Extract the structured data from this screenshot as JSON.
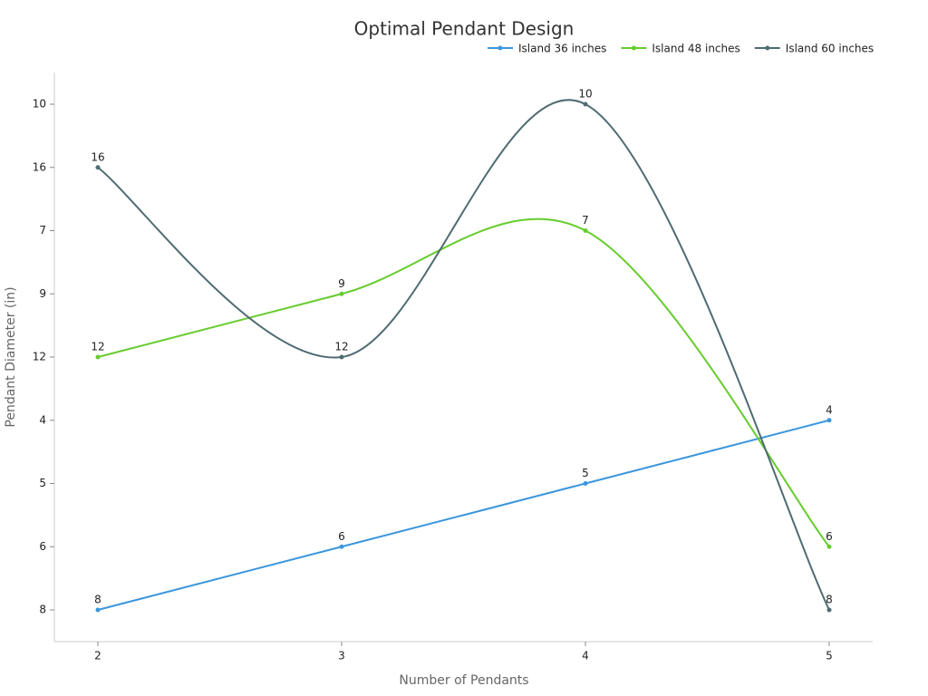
{
  "chart_data": {
    "type": "line",
    "title": "Optimal Pendant Design",
    "x_label": "Number of Pendants",
    "y_label": "Pendant Diameter (in)",
    "categories": [
      "2",
      "3",
      "4",
      "5"
    ],
    "y_categories": [
      8,
      6,
      5,
      4,
      12,
      9,
      7,
      16,
      10
    ],
    "smooth": true,
    "series": [
      {
        "name": "Island 36 inches",
        "color": "#3a96dd",
        "values": [
          8,
          6,
          5,
          4
        ]
      },
      {
        "name": "Island 48 inches",
        "color": "#66cc2e",
        "values": [
          12,
          9,
          7,
          6
        ]
      },
      {
        "name": "Island 60 inches",
        "color": "#4f6b73",
        "values": [
          16,
          12,
          10,
          8
        ]
      }
    ]
  }
}
